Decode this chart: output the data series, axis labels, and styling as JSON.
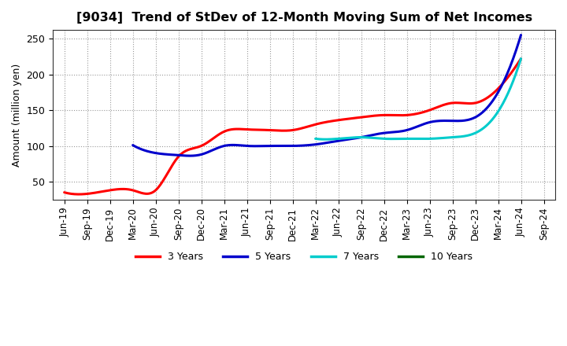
{
  "title": "[9034]  Trend of StDev of 12-Month Moving Sum of Net Incomes",
  "ylabel": "Amount (million yen)",
  "background_color": "#ffffff",
  "grid_color": "#999999",
  "ylim": [
    25,
    262
  ],
  "yticks": [
    50,
    100,
    150,
    200,
    250
  ],
  "x_labels": [
    "Jun-19",
    "Sep-19",
    "Dec-19",
    "Mar-20",
    "Jun-20",
    "Sep-20",
    "Dec-20",
    "Mar-21",
    "Jun-21",
    "Sep-21",
    "Dec-21",
    "Mar-22",
    "Jun-22",
    "Sep-22",
    "Dec-22",
    "Mar-23",
    "Jun-23",
    "Sep-23",
    "Dec-23",
    "Mar-24",
    "Jun-24",
    "Sep-24"
  ],
  "series": {
    "3 Years": {
      "color": "#ff0000",
      "linewidth": 2.2,
      "data_x": [
        0,
        1,
        2,
        3,
        4,
        5,
        6,
        7,
        8,
        9,
        10,
        11,
        12,
        13,
        14,
        15,
        16,
        17,
        18,
        19,
        20
      ],
      "data_y": [
        35,
        33,
        38,
        38,
        38,
        85,
        100,
        120,
        123,
        122,
        122,
        130,
        136,
        140,
        143,
        143,
        150,
        160,
        160,
        180,
        222
      ]
    },
    "5 Years": {
      "color": "#0000cc",
      "linewidth": 2.2,
      "data_x": [
        3,
        4,
        5,
        6,
        7,
        8,
        9,
        10,
        11,
        12,
        13,
        14,
        15,
        16,
        17,
        18,
        19,
        20
      ],
      "data_y": [
        101,
        90,
        87,
        88,
        100,
        100,
        100,
        100,
        102,
        107,
        112,
        118,
        122,
        133,
        135,
        140,
        175,
        255
      ]
    },
    "7 Years": {
      "color": "#00cccc",
      "linewidth": 2.2,
      "data_x": [
        11,
        12,
        13,
        14,
        15,
        16,
        17,
        18,
        19,
        20
      ],
      "data_y": [
        110,
        110,
        112,
        110,
        110,
        110,
        112,
        118,
        148,
        222
      ]
    },
    "10 Years": {
      "color": "#006600",
      "linewidth": 2.2,
      "data_x": [],
      "data_y": []
    }
  },
  "legend_labels": [
    "3 Years",
    "5 Years",
    "7 Years",
    "10 Years"
  ],
  "legend_colors": [
    "#ff0000",
    "#0000cc",
    "#00cccc",
    "#006600"
  ]
}
